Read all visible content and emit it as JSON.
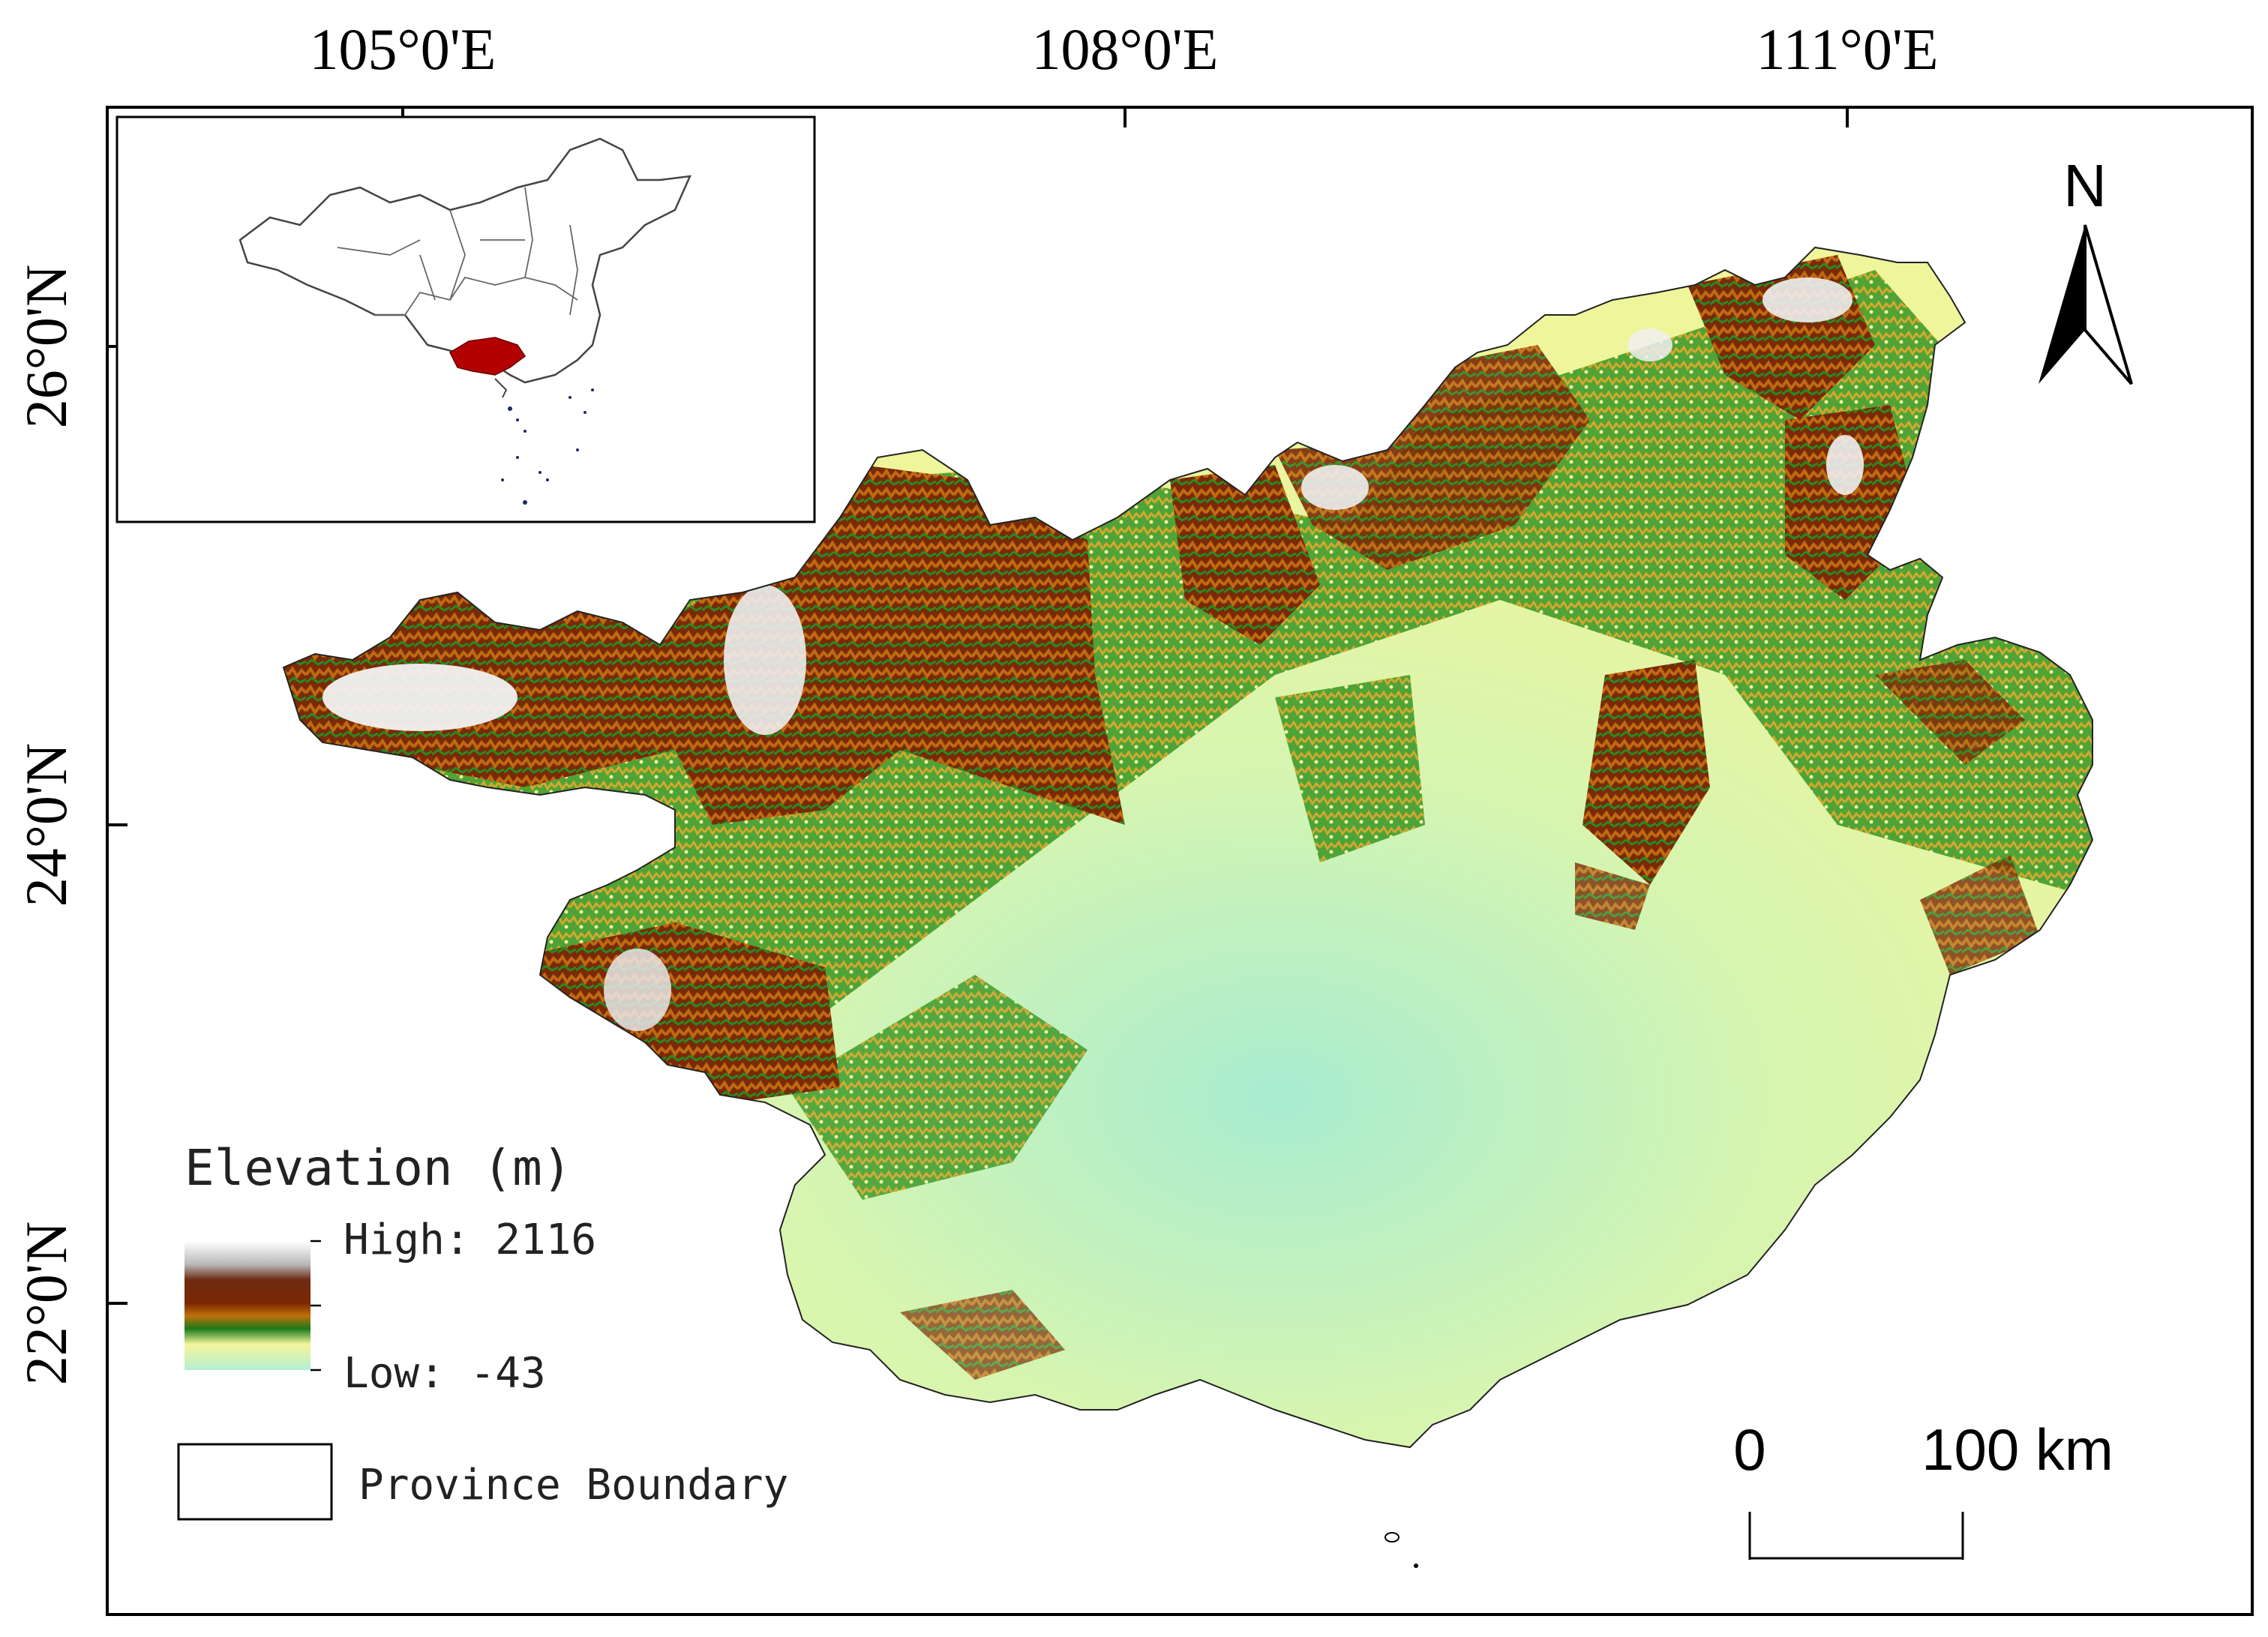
{
  "axes": {
    "top_labels": [
      "105°0'E",
      "108°0'E",
      "111°0'E"
    ],
    "left_labels": [
      "26°0'N",
      "24°0'N",
      "22°0'N"
    ]
  },
  "legend": {
    "title": "Elevation (m)",
    "high_label": "High: 2116",
    "low_label": "Low: -43",
    "boundary_label": "Province Boundary",
    "ramp_colors": [
      "#ffffff",
      "#b9b9b9",
      "#6e2b12",
      "#7a2600",
      "#a04010",
      "#d08a10",
      "#1a7a1a",
      "#f4f49a",
      "#b4f0d2"
    ]
  },
  "north_arrow": {
    "label": "N"
  },
  "scale_bar": {
    "start_label": "0",
    "end_label": "100 km"
  },
  "inset": {
    "highlight_color": "#b30000"
  },
  "icons": {
    "north": "north-arrow-icon",
    "scale": "scale-bar-icon"
  }
}
